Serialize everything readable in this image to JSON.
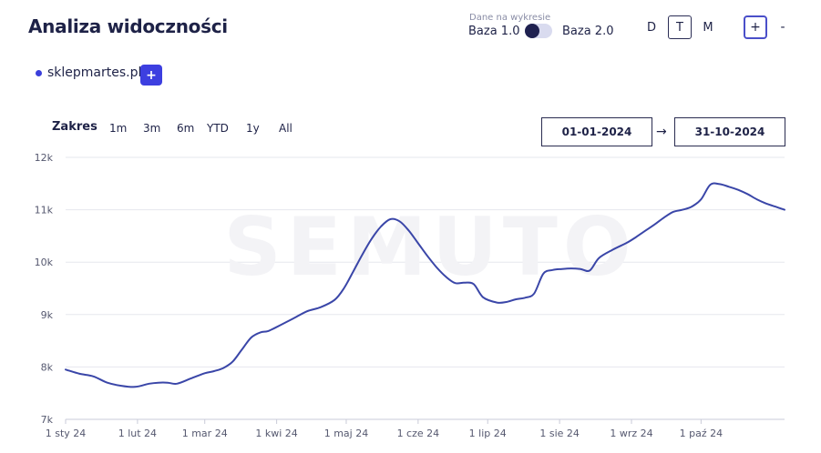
{
  "header": {
    "title": "Analiza widoczności",
    "base_caption": "Dane na wykresie",
    "base_1": "Baza 1.0",
    "base_2": "Baza 2.0",
    "granularity": [
      "D",
      "T",
      "M"
    ],
    "granularity_active": "T",
    "zoom_in": "+",
    "zoom_out": "-"
  },
  "domains": {
    "items": [
      "sklepmartes.pl"
    ],
    "add_label": "+",
    "dot_color": "#3b3fdb"
  },
  "range": {
    "label": "Zakres",
    "buttons": [
      "1m",
      "3m",
      "6m",
      "YTD",
      "1y",
      "All"
    ],
    "date_from": "01-01-2024",
    "date_to": "31-10-2024",
    "arrow": "→"
  },
  "chart_data": {
    "type": "line",
    "watermark": "SEMUTO",
    "y_ticks": [
      "12k",
      "11k",
      "10k",
      "9k",
      "8k",
      "7k"
    ],
    "ylim": [
      7000,
      12000
    ],
    "x_ticks": [
      "1 sty 24",
      "1 lut 24",
      "1 mar 24",
      "1 kwi 24",
      "1 maj 24",
      "1 cze 24",
      "1 lip 24",
      "1 sie 24",
      "1 wrz 24",
      "1 paź 24"
    ],
    "x_tick_days": [
      0,
      31,
      60,
      91,
      121,
      152,
      182,
      213,
      244,
      274
    ],
    "xlim": [
      0,
      310
    ],
    "line_color": "#3a46a8",
    "series": [
      {
        "x": [
          0,
          6,
          12,
          18,
          24,
          30,
          36,
          40,
          44,
          48,
          54,
          60,
          64,
          68,
          72,
          76,
          80,
          84,
          87,
          90,
          94,
          98,
          104,
          110,
          116,
          120,
          124,
          128,
          132,
          136,
          140,
          144,
          148,
          152,
          156,
          160,
          164,
          168,
          172,
          176,
          180,
          186,
          190,
          194,
          198,
          202,
          206,
          210,
          214,
          218,
          222,
          226,
          230,
          236,
          242,
          246,
          250,
          254,
          258,
          262,
          266,
          270,
          274,
          278,
          282,
          286,
          290,
          294,
          298,
          302,
          306,
          310
        ],
        "y": [
          7950,
          7870,
          7820,
          7700,
          7640,
          7620,
          7680,
          7700,
          7700,
          7680,
          7780,
          7880,
          7920,
          7980,
          8100,
          8330,
          8560,
          8660,
          8680,
          8740,
          8830,
          8920,
          9060,
          9140,
          9280,
          9500,
          9820,
          10150,
          10450,
          10680,
          10820,
          10780,
          10600,
          10360,
          10120,
          9900,
          9720,
          9600,
          9610,
          9580,
          9330,
          9230,
          9240,
          9290,
          9320,
          9400,
          9780,
          9850,
          9870,
          9880,
          9870,
          9840,
          10080,
          10240,
          10370,
          10480,
          10600,
          10720,
          10850,
          10960,
          11000,
          11060,
          11200,
          11480,
          11490,
          11440,
          11380,
          11300,
          11200,
          11120,
          11060,
          11000
        ]
      }
    ]
  }
}
